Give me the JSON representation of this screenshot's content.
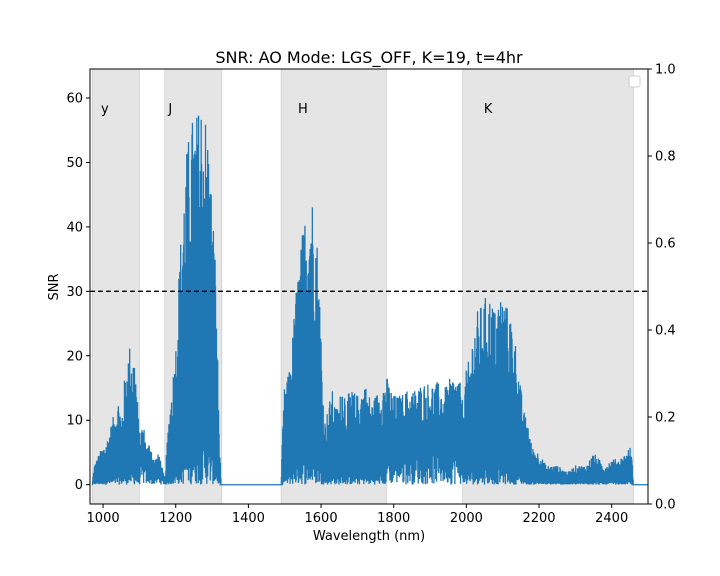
{
  "chart_data": {
    "type": "line",
    "title": "SNR: AO Mode: LGS_OFF, K=19, t=4hr",
    "xlabel": "Wavelength (nm)",
    "ylabel": "SNR",
    "xlim": [
      964,
      2500
    ],
    "ylim": [
      -3,
      64.5
    ],
    "y2lim": [
      0.0,
      1.0
    ],
    "x_ticks": [
      1000,
      1200,
      1400,
      1600,
      1800,
      2000,
      2200,
      2400
    ],
    "y_ticks": [
      0,
      10,
      20,
      30,
      40,
      50,
      60
    ],
    "y2_ticks": [
      "0.0",
      "0.2",
      "0.4",
      "0.6",
      "0.8",
      "1.0"
    ],
    "threshold": {
      "value": 30,
      "style": "dashed",
      "color": "#000000"
    },
    "bands": [
      {
        "label": "y",
        "start": 970,
        "end": 1100
      },
      {
        "label": "J",
        "start": 1170,
        "end": 1327
      },
      {
        "label": "H",
        "start": 1490,
        "end": 1780
      },
      {
        "label": "K",
        "start": 1990,
        "end": 2460
      }
    ],
    "band_color": "#e5e5e5",
    "series_color": "#1f77b4",
    "envelope": [
      [
        970,
        0
      ],
      [
        975,
        3
      ],
      [
        990,
        5
      ],
      [
        1010,
        7
      ],
      [
        1030,
        11
      ],
      [
        1045,
        14
      ],
      [
        1050,
        10
      ],
      [
        1058,
        16
      ],
      [
        1065,
        19
      ],
      [
        1072,
        22
      ],
      [
        1080,
        21
      ],
      [
        1088,
        20
      ],
      [
        1095,
        13
      ],
      [
        1100,
        8
      ],
      [
        1110,
        10
      ],
      [
        1120,
        6
      ],
      [
        1130,
        7
      ],
      [
        1140,
        4
      ],
      [
        1155,
        5
      ],
      [
        1165,
        2
      ],
      [
        1170,
        1
      ],
      [
        1180,
        10
      ],
      [
        1190,
        16
      ],
      [
        1200,
        22
      ],
      [
        1210,
        35
      ],
      [
        1220,
        45
      ],
      [
        1230,
        52
      ],
      [
        1240,
        56
      ],
      [
        1250,
        58
      ],
      [
        1260,
        58
      ],
      [
        1270,
        61
      ],
      [
        1280,
        59
      ],
      [
        1290,
        55
      ],
      [
        1300,
        45
      ],
      [
        1310,
        35
      ],
      [
        1320,
        8
      ],
      [
        1325,
        0
      ],
      [
        1490,
        0
      ],
      [
        1495,
        10
      ],
      [
        1500,
        16
      ],
      [
        1510,
        17
      ],
      [
        1520,
        22
      ],
      [
        1530,
        30
      ],
      [
        1540,
        35
      ],
      [
        1550,
        40
      ],
      [
        1560,
        44
      ],
      [
        1570,
        46
      ],
      [
        1580,
        45
      ],
      [
        1590,
        38
      ],
      [
        1600,
        25
      ],
      [
        1605,
        15
      ],
      [
        1610,
        10
      ],
      [
        1620,
        12
      ],
      [
        1630,
        15
      ],
      [
        1640,
        12
      ],
      [
        1650,
        13
      ],
      [
        1660,
        17
      ],
      [
        1670,
        13
      ],
      [
        1680,
        15
      ],
      [
        1700,
        14
      ],
      [
        1720,
        16
      ],
      [
        1740,
        13
      ],
      [
        1760,
        15
      ],
      [
        1780,
        17
      ],
      [
        1800,
        14
      ],
      [
        1820,
        14
      ],
      [
        1840,
        15
      ],
      [
        1860,
        15
      ],
      [
        1880,
        16
      ],
      [
        1900,
        16
      ],
      [
        1920,
        16
      ],
      [
        1940,
        15
      ],
      [
        1960,
        17
      ],
      [
        1980,
        17
      ],
      [
        1990,
        13
      ],
      [
        2000,
        18
      ],
      [
        2010,
        20
      ],
      [
        2020,
        25
      ],
      [
        2030,
        27
      ],
      [
        2040,
        28
      ],
      [
        2050,
        29
      ],
      [
        2060,
        30
      ],
      [
        2070,
        29
      ],
      [
        2080,
        27
      ],
      [
        2090,
        30
      ],
      [
        2100,
        30
      ],
      [
        2110,
        28
      ],
      [
        2120,
        27
      ],
      [
        2130,
        25
      ],
      [
        2140,
        20
      ],
      [
        2150,
        15
      ],
      [
        2160,
        11
      ],
      [
        2170,
        10
      ],
      [
        2180,
        6
      ],
      [
        2200,
        5
      ],
      [
        2220,
        3
      ],
      [
        2250,
        3
      ],
      [
        2280,
        2
      ],
      [
        2300,
        3
      ],
      [
        2330,
        3
      ],
      [
        2350,
        5
      ],
      [
        2380,
        3
      ],
      [
        2400,
        4
      ],
      [
        2420,
        4
      ],
      [
        2440,
        5
      ],
      [
        2450,
        6
      ],
      [
        2455,
        5
      ],
      [
        2460,
        0
      ],
      [
        2500,
        0
      ]
    ]
  }
}
